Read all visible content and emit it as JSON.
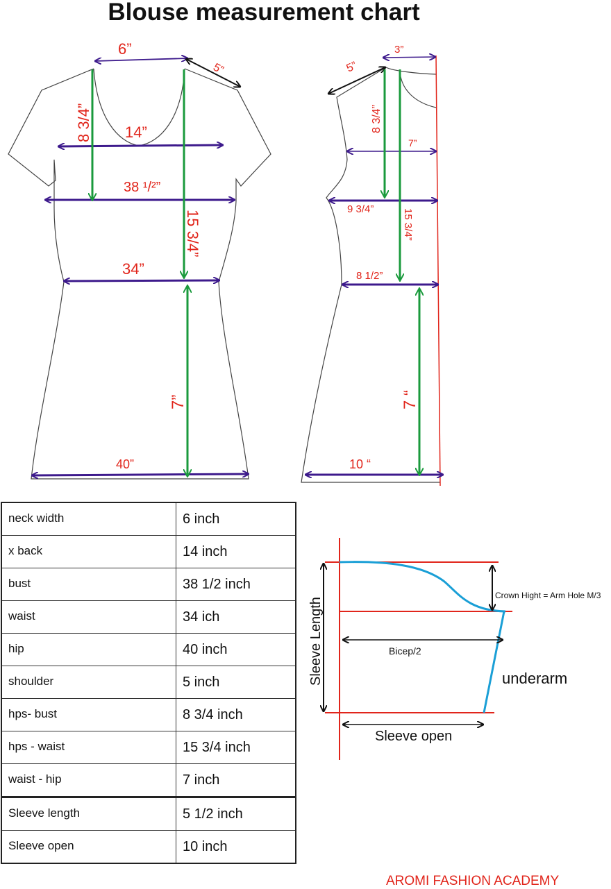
{
  "title": "Blouse measurement chart",
  "colors": {
    "measure_line": "#3d1a8c",
    "vertical_arrow": "#1a9a3c",
    "label_red": "#e1251b",
    "sleeve_curve": "#1a9fd6",
    "outline": "#444444"
  },
  "front": {
    "neck_width": "6”",
    "shoulder": "5”",
    "x_back": "14”",
    "hps_bust": "8 3/4”",
    "bust": "38 ¹/²”",
    "hps_waist": "15 3/4”",
    "waist": "34”",
    "waist_hip": "7”",
    "hip": "40”"
  },
  "back": {
    "shoulder": "5”",
    "neck": "3”",
    "hps_bust": "8 3/4”",
    "x_back": "7”",
    "bust": "9 3/4”",
    "hps_waist": "15 3/4”",
    "waist": "8 1/2”",
    "waist_hip": "7 “",
    "hip": "10 “"
  },
  "table": {
    "rows": [
      {
        "name": "neck width",
        "value": "6 inch"
      },
      {
        "name": "x back",
        "value": "14 inch"
      },
      {
        "name": "bust",
        "value": "38 1/2 inch"
      },
      {
        "name": "waist",
        "value": "34 ich"
      },
      {
        "name": "hip",
        "value": "40 inch"
      },
      {
        "name": "shoulder",
        "value": "5 inch"
      },
      {
        "name": "hps- bust",
        "value": "8 3/4 inch"
      },
      {
        "name": "hps - waist",
        "value": "15 3/4 inch"
      },
      {
        "name": "waist - hip",
        "value": "7 inch"
      },
      {
        "name": "Sleeve length",
        "value": "5 1/2 inch"
      },
      {
        "name": "Sleeve open",
        "value": "10 inch"
      }
    ]
  },
  "sleeve": {
    "length_label": "Sleeve Length",
    "crown_label": "Crown Hight = Arm Hole M/3",
    "bicep_label": "Bicep/2",
    "underarm_label": "underarm",
    "open_label": "Sleeve open"
  },
  "footer": "AROMI FASHION ACADEMY"
}
